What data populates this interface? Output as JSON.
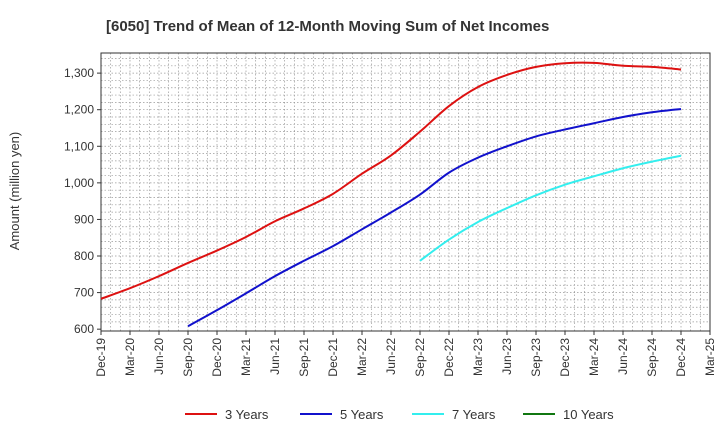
{
  "chart_data": {
    "type": "line",
    "title": "[6050]  Trend of Mean of 12-Month Moving Sum of Net Incomes",
    "xlabel": "",
    "ylabel": "Amount (million yen)",
    "ylim": [
      595,
      1355
    ],
    "yticks": [
      600,
      700,
      800,
      900,
      1000,
      1100,
      1200,
      1300
    ],
    "ytick_labels": [
      "600",
      "700",
      "800",
      "900",
      "1,000",
      "1,100",
      "1,200",
      "1,300"
    ],
    "xticks": [
      "Dec-19",
      "Mar-20",
      "Jun-20",
      "Sep-20",
      "Dec-20",
      "Mar-21",
      "Jun-21",
      "Sep-21",
      "Dec-21",
      "Mar-22",
      "Jun-22",
      "Sep-22",
      "Dec-22",
      "Mar-23",
      "Jun-23",
      "Sep-23",
      "Dec-23",
      "Mar-24",
      "Jun-24",
      "Sep-24",
      "Dec-24",
      "Mar-25"
    ],
    "grid": true,
    "legend_position": "bottom",
    "series": [
      {
        "name": "3 Years",
        "color": "#dd1111",
        "x": [
          "Dec-19",
          "Mar-20",
          "Jun-20",
          "Sep-20",
          "Dec-20",
          "Mar-21",
          "Jun-21",
          "Sep-21",
          "Dec-21",
          "Mar-22",
          "Jun-22",
          "Sep-22",
          "Dec-22",
          "Mar-23",
          "Jun-23",
          "Sep-23",
          "Dec-23",
          "Mar-24",
          "Jun-24",
          "Sep-24",
          "Dec-24"
        ],
        "values": [
          683,
          712,
          745,
          781,
          815,
          852,
          895,
          930,
          970,
          1025,
          1075,
          1140,
          1210,
          1262,
          1295,
          1317,
          1327,
          1328,
          1320,
          1317,
          1310
        ]
      },
      {
        "name": "5 Years",
        "color": "#1111cc",
        "x": [
          "Sep-20",
          "Dec-20",
          "Mar-21",
          "Jun-21",
          "Sep-21",
          "Dec-21",
          "Mar-22",
          "Jun-22",
          "Sep-22",
          "Dec-22",
          "Mar-23",
          "Jun-23",
          "Sep-23",
          "Dec-23",
          "Mar-24",
          "Jun-24",
          "Sep-24",
          "Dec-24"
        ],
        "values": [
          608,
          652,
          698,
          745,
          787,
          827,
          873,
          919,
          968,
          1028,
          1069,
          1100,
          1127,
          1146,
          1163,
          1180,
          1193,
          1202
        ]
      },
      {
        "name": "7 Years",
        "color": "#33eeee",
        "x": [
          "Sep-22",
          "Dec-22",
          "Mar-23",
          "Jun-23",
          "Sep-23",
          "Dec-23",
          "Mar-24",
          "Jun-24",
          "Sep-24",
          "Dec-24"
        ],
        "values": [
          787,
          845,
          893,
          931,
          966,
          995,
          1018,
          1040,
          1058,
          1074
        ]
      },
      {
        "name": "10 Years",
        "color": "#117711",
        "x": [],
        "values": []
      }
    ]
  }
}
